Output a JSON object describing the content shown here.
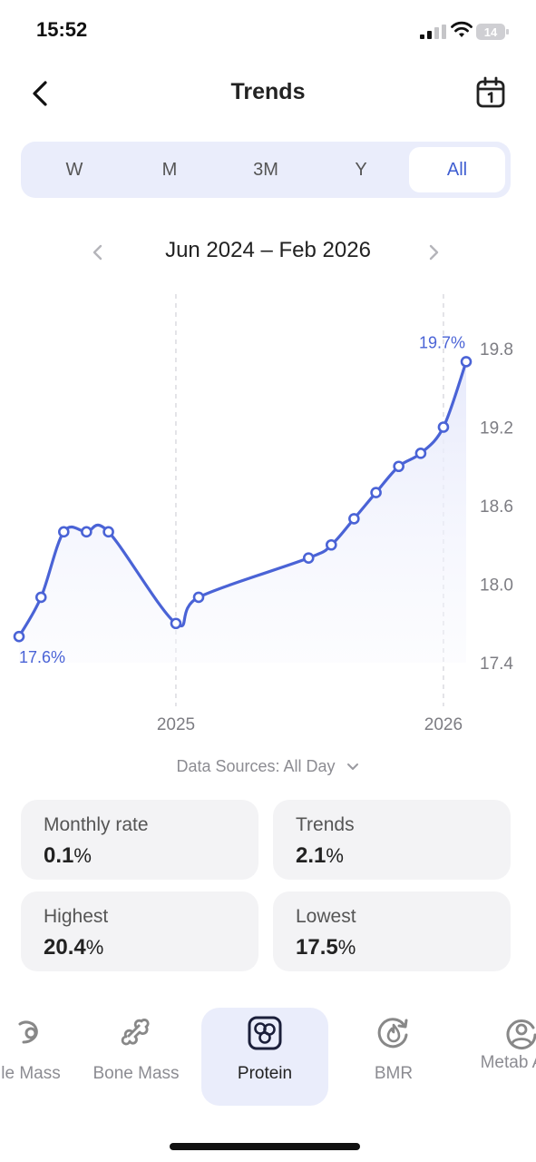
{
  "status": {
    "time": "15:52",
    "battery": "14"
  },
  "header": {
    "title": "Trends"
  },
  "tabs": [
    {
      "label": "W",
      "active": false
    },
    {
      "label": "M",
      "active": false
    },
    {
      "label": "3M",
      "active": false
    },
    {
      "label": "Y",
      "active": false
    },
    {
      "label": "All",
      "active": true
    }
  ],
  "range": {
    "label": "Jun 2024 – Feb 2026"
  },
  "chart_data": {
    "type": "line",
    "series": [
      {
        "values": [
          {
            "x": "2024-06",
            "y": 17.6
          },
          {
            "x": "2024-07",
            "y": 17.9
          },
          {
            "x": "2024-08",
            "y": 18.4
          },
          {
            "x": "2024-09",
            "y": 18.4
          },
          {
            "x": "2024-10",
            "y": 18.4
          },
          {
            "x": "2025-01",
            "y": 17.7
          },
          {
            "x": "2025-02",
            "y": 17.9
          },
          {
            "x": "2025-07",
            "y": 18.2
          },
          {
            "x": "2025-08",
            "y": 18.3
          },
          {
            "x": "2025-09",
            "y": 18.5
          },
          {
            "x": "2025-10",
            "y": 18.7
          },
          {
            "x": "2025-11",
            "y": 18.9
          },
          {
            "x": "2025-12",
            "y": 19.0
          },
          {
            "x": "2026-01",
            "y": 19.2
          },
          {
            "x": "2026-02",
            "y": 19.7
          }
        ]
      }
    ],
    "x_ticks": [
      "2025",
      "2026"
    ],
    "y_ticks": [
      "19.8",
      "19.2",
      "18.6",
      "18.0",
      "17.4"
    ],
    "ylim": [
      17.4,
      19.8
    ],
    "annotations": {
      "start": "17.6%",
      "end": "19.7%"
    },
    "color": "#4a63d6"
  },
  "data_source": {
    "label": "Data Sources: All Day"
  },
  "stats": [
    {
      "label": "Monthly rate",
      "value": "0.1",
      "unit": "%"
    },
    {
      "label": "Trends",
      "value": "2.1",
      "unit": "%"
    },
    {
      "label": "Highest",
      "value": "20.4",
      "unit": "%"
    },
    {
      "label": "Lowest",
      "value": "17.5",
      "unit": "%"
    }
  ],
  "nav": [
    {
      "label": "le Mass",
      "icon": "muscle-mass-icon"
    },
    {
      "label": "Bone Mass",
      "icon": "bone-icon"
    },
    {
      "label": "Protein",
      "icon": "protein-icon",
      "active": true
    },
    {
      "label": "BMR",
      "icon": "bmr-icon"
    },
    {
      "label": "Metab Age",
      "icon": "metabolic-age-icon"
    }
  ]
}
